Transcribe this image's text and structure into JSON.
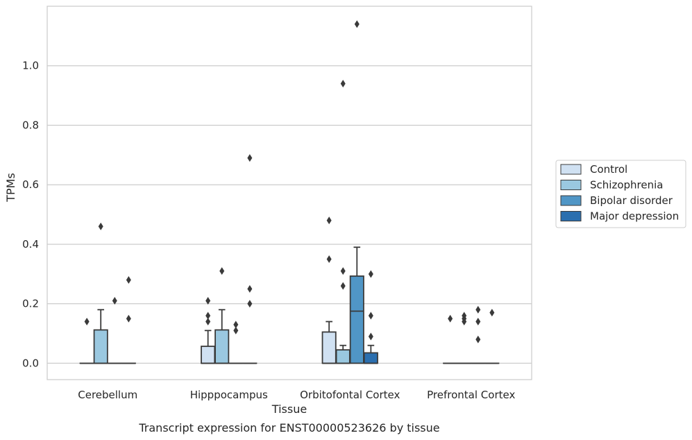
{
  "chart_data": {
    "type": "box",
    "xlabel": "Tissue",
    "ylabel": "TPMs",
    "caption": "Transcript expression for ENST00000523626 by tissue",
    "categories": [
      "Cerebellum",
      "Hipppocampus",
      "Orbitofontal Cortex",
      "Prefrontal Cortex"
    ],
    "ylim": [
      -0.055,
      1.2
    ],
    "yticks": [
      0.0,
      0.2,
      0.4,
      0.6,
      0.8,
      1.0
    ],
    "ytick_labels": [
      "0.0",
      "0.2",
      "0.4",
      "0.6",
      "0.8",
      "1.0"
    ],
    "grid": "horizontal",
    "legend_position": "right",
    "series": [
      {
        "name": "Control",
        "color": "#d0e1f2",
        "boxes": [
          {
            "q1": 0,
            "median": 0,
            "q3": 0,
            "whisker_low": 0,
            "whisker_high": 0,
            "outliers": [
              0.14
            ]
          },
          {
            "q1": 0,
            "median": 0,
            "q3": 0.057,
            "whisker_low": 0,
            "whisker_high": 0.11,
            "outliers": [
              0.14,
              0.16,
              0.21
            ]
          },
          {
            "q1": 0,
            "median": 0,
            "q3": 0.105,
            "whisker_low": 0,
            "whisker_high": 0.14,
            "outliers": [
              0.35,
              0.48
            ]
          },
          {
            "q1": 0,
            "median": 0,
            "q3": 0,
            "whisker_low": 0,
            "whisker_high": 0,
            "outliers": [
              0.15
            ]
          }
        ]
      },
      {
        "name": "Schizophrenia",
        "color": "#9ac8e0",
        "boxes": [
          {
            "q1": 0,
            "median": 0,
            "q3": 0.112,
            "whisker_low": 0,
            "whisker_high": 0.18,
            "outliers": [
              0.46
            ]
          },
          {
            "q1": 0,
            "median": 0,
            "q3": 0.112,
            "whisker_low": 0,
            "whisker_high": 0.18,
            "outliers": [
              0.31
            ]
          },
          {
            "q1": 0,
            "median": 0,
            "q3": 0.045,
            "whisker_low": 0,
            "whisker_high": 0.06,
            "outliers": [
              0.26,
              0.31,
              0.94
            ]
          },
          {
            "q1": 0,
            "median": 0,
            "q3": 0,
            "whisker_low": 0,
            "whisker_high": 0,
            "outliers": [
              0.14,
              0.15,
              0.16
            ]
          }
        ]
      },
      {
        "name": "Bipolar disorder",
        "color": "#5096c6",
        "boxes": [
          {
            "q1": 0,
            "median": 0,
            "q3": 0,
            "whisker_low": 0,
            "whisker_high": 0,
            "outliers": [
              0.21
            ]
          },
          {
            "q1": 0,
            "median": 0,
            "q3": 0,
            "whisker_low": 0,
            "whisker_high": 0,
            "outliers": [
              0.11,
              0.13
            ]
          },
          {
            "q1": 0,
            "median": 0.175,
            "q3": 0.293,
            "whisker_low": 0,
            "whisker_high": 0.39,
            "outliers": [
              1.14
            ]
          },
          {
            "q1": 0,
            "median": 0,
            "q3": 0,
            "whisker_low": 0,
            "whisker_high": 0,
            "outliers": [
              0.08,
              0.14,
              0.18
            ]
          }
        ]
      },
      {
        "name": "Major depression",
        "color": "#2b6faf",
        "boxes": [
          {
            "q1": 0,
            "median": 0,
            "q3": 0,
            "whisker_low": 0,
            "whisker_high": 0,
            "outliers": [
              0.15,
              0.28
            ]
          },
          {
            "q1": 0,
            "median": 0,
            "q3": 0,
            "whisker_low": 0,
            "whisker_high": 0,
            "outliers": [
              0.2,
              0.25,
              0.69
            ]
          },
          {
            "q1": 0,
            "median": 0,
            "q3": 0.035,
            "whisker_low": 0,
            "whisker_high": 0.06,
            "outliers": [
              0.09,
              0.16,
              0.3
            ]
          },
          {
            "q1": 0,
            "median": 0,
            "q3": 0,
            "whisker_low": 0,
            "whisker_high": 0,
            "outliers": [
              0.17
            ]
          }
        ]
      }
    ]
  }
}
